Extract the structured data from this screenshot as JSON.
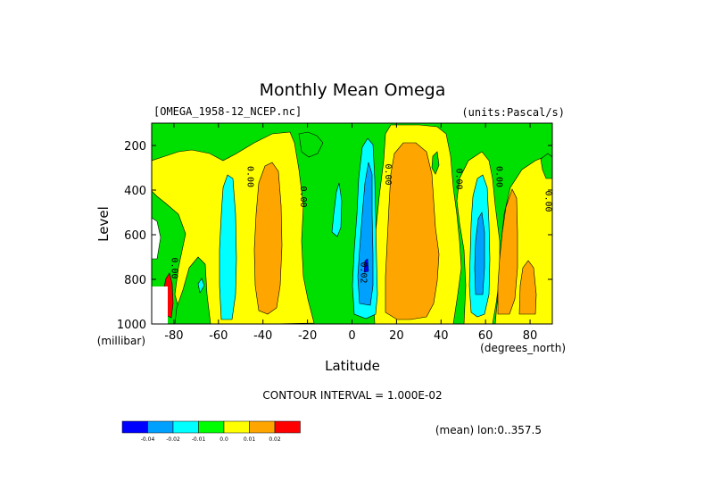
{
  "chart_data": {
    "type": "heatmap",
    "title": "Monthly Mean Omega",
    "dataset": "[OMEGA_1958-12_NCEP.nc]",
    "units_text": "(units:Pascal/s)",
    "xlabel": "Latitude",
    "ylabel": "Level",
    "x_unit": "(degrees_north)",
    "y_unit": "(millibar)",
    "xlim": [
      -90,
      90
    ],
    "ylim": [
      1000,
      100
    ],
    "x_ticks": [
      -80,
      -60,
      -40,
      -20,
      0,
      20,
      40,
      60,
      80
    ],
    "x_tick_labels": [
      "-80",
      "-60",
      "-40",
      "-20",
      "0",
      "20",
      "40",
      "60",
      "80"
    ],
    "y_ticks": [
      200,
      400,
      600,
      800,
      1000
    ],
    "y_tick_labels": [
      "200",
      "400",
      "600",
      "800",
      "1000"
    ],
    "contour_interval_text": "CONTOUR INTERVAL = 1.000E-02",
    "mean_note": "(mean) lon:0..357.5",
    "contour_labels": [
      {
        "text": "0.00",
        "lat": -81,
        "lev": 750
      },
      {
        "text": "0.00",
        "lat": -47,
        "lev": 340
      },
      {
        "text": "0.00",
        "lat": -23,
        "lev": 430
      },
      {
        "text": "0.00",
        "lat": 15,
        "lev": 330
      },
      {
        "text": "0.02",
        "lat": 4,
        "lev": 770
      },
      {
        "text": "0.00",
        "lat": 47,
        "lev": 350
      },
      {
        "text": "0.00",
        "lat": 65,
        "lev": 340
      },
      {
        "text": "0.00",
        "lat": 87,
        "lev": 450
      }
    ],
    "colorbar": {
      "levels": [
        "-0.04",
        "-0.02",
        "-0.01",
        "0.0",
        "0.01",
        "0.02"
      ],
      "colors": [
        "#0000ff",
        "#00a0ff",
        "#00ffff",
        "#00ff00",
        "#ffff00",
        "#ffa500",
        "#ff0000"
      ]
    },
    "field_features": [
      {
        "lat": -80,
        "lev": 950,
        "value": 0.02
      },
      {
        "lat": -70,
        "lev": 700,
        "value": -0.01
      },
      {
        "lat": -57,
        "lev": 620,
        "value": -0.015
      },
      {
        "lat": -39,
        "lev": 580,
        "value": 0.015
      },
      {
        "lat": 0,
        "lev": 780,
        "value": -0.035
      },
      {
        "lat": 26,
        "lev": 560,
        "value": 0.015
      },
      {
        "lat": 57,
        "lev": 700,
        "value": -0.02
      },
      {
        "lat": 72,
        "lev": 720,
        "value": 0.01
      },
      {
        "lat": 85,
        "lev": 900,
        "value": 0.01
      }
    ]
  }
}
